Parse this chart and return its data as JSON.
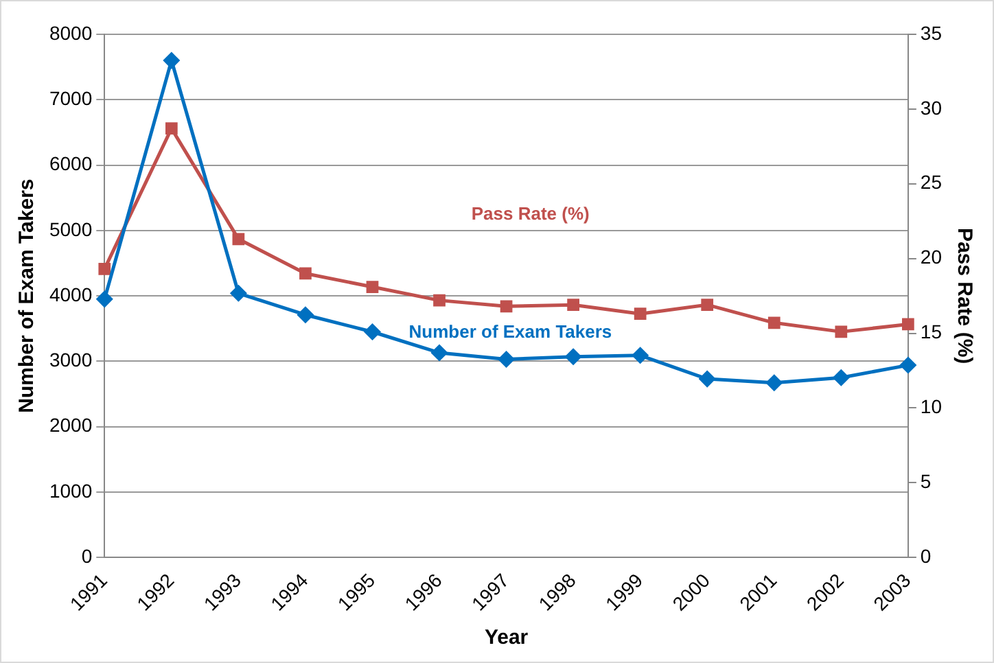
{
  "chart_data": {
    "type": "line",
    "xlabel": "Year",
    "ylabel": "Number of Exam Takers",
    "y2label": "Pass Rate (%)",
    "categories": [
      "1991",
      "1992",
      "1993",
      "1994",
      "1995",
      "1996",
      "1997",
      "1998",
      "1999",
      "2000",
      "2001",
      "2002",
      "2003"
    ],
    "series": [
      {
        "name": "Number of Exam Takers",
        "color": "#0070c0",
        "marker": "diamond",
        "values": [
          3950,
          7600,
          4040,
          3710,
          3450,
          3130,
          3030,
          3070,
          3090,
          2730,
          2670,
          2750,
          2940
        ]
      },
      {
        "name": "Pass Rate (%)",
        "color": "#c0504d",
        "marker": "square",
        "axis": "y2",
        "values": [
          19.3,
          28.7,
          21.3,
          19.0,
          18.1,
          17.2,
          16.8,
          16.9,
          16.3,
          16.9,
          15.7,
          15.1,
          15.6
        ]
      }
    ],
    "ylim": [
      0,
      8000
    ],
    "yticks": [
      0,
      1000,
      2000,
      3000,
      4000,
      5000,
      6000,
      7000,
      8000
    ],
    "y2lim": [
      0,
      35
    ],
    "y2ticks": [
      0,
      5,
      10,
      15,
      20,
      25,
      30,
      35
    ],
    "grid": "y",
    "legend": false
  }
}
